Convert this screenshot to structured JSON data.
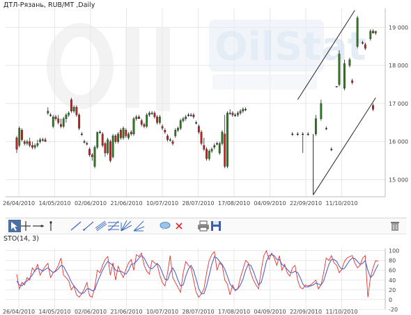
{
  "chart_data": [
    {
      "type": "candlestick",
      "title": "ДТЛ-Рязань,  RUB/MT ,Daily",
      "y_axis_side": "right",
      "ylim": [
        14550,
        19500
      ],
      "yticks": [
        15000,
        16000,
        17000,
        18000,
        19000
      ],
      "ytick_labels": [
        "15 000",
        "16 000",
        "17 000",
        "18 000",
        "19 000"
      ],
      "x_ticks": [
        "26/04/2010",
        "14/05/2010",
        "02/06/2010",
        "21/06/2010",
        "10/07/2010",
        "28/07/2010",
        "17/08/2010",
        "04/09/2010",
        "22/09/2010",
        "11/10/2010"
      ],
      "grid": true,
      "watermark": "OilStat",
      "colors": {
        "up": "#2e7d1f",
        "down": "#cc1f1f",
        "flat": "#222222",
        "trendline": "#222222"
      },
      "candles": [
        {
          "o": 16100,
          "h": 16150,
          "l": 15700,
          "c": 15800
        },
        {
          "o": 15900,
          "h": 16400,
          "l": 15850,
          "c": 16350
        },
        {
          "o": 16300,
          "h": 16350,
          "l": 16000,
          "c": 16050
        },
        {
          "o": 16000,
          "h": 16050,
          "l": 15900,
          "c": 15950
        },
        {
          "o": 15950,
          "h": 16050,
          "l": 15900,
          "c": 16000
        },
        {
          "o": 16000,
          "h": 16100,
          "l": 15850,
          "c": 15900
        },
        {
          "o": 15900,
          "h": 16000,
          "l": 15800,
          "c": 15850
        },
        {
          "o": 15850,
          "h": 15950,
          "l": 15800,
          "c": 15900
        },
        {
          "o": 15900,
          "h": 16050,
          "l": 15850,
          "c": 15950
        },
        {
          "o": 16000,
          "h": 16100,
          "l": 15950,
          "c": 16050
        },
        {
          "o": 16050,
          "h": 16100,
          "l": 16000,
          "c": 16050
        },
        {
          "o": 16050,
          "h": 16100,
          "l": 16000,
          "c": 16000
        },
        {
          "o": 16750,
          "h": 16900,
          "l": 16700,
          "c": 16800
        },
        {
          "o": 16700,
          "h": 16750,
          "l": 16650,
          "c": 16700
        },
        {
          "o": 16400,
          "h": 16700,
          "l": 16350,
          "c": 16650
        },
        {
          "o": 16650,
          "h": 16700,
          "l": 16550,
          "c": 16600
        },
        {
          "o": 16600,
          "h": 16700,
          "l": 16450,
          "c": 16500
        },
        {
          "o": 16450,
          "h": 16600,
          "l": 16350,
          "c": 16400
        },
        {
          "o": 16400,
          "h": 16650,
          "l": 16350,
          "c": 16600
        },
        {
          "o": 16600,
          "h": 16750,
          "l": 16500,
          "c": 16700
        },
        {
          "o": 16700,
          "h": 16800,
          "l": 16650,
          "c": 16750
        },
        {
          "o": 17100,
          "h": 17150,
          "l": 16750,
          "c": 16800
        },
        {
          "o": 16800,
          "h": 16950,
          "l": 16750,
          "c": 16900
        },
        {
          "o": 16900,
          "h": 16950,
          "l": 16650,
          "c": 16700
        },
        {
          "o": 16700,
          "h": 16750,
          "l": 16300,
          "c": 16350
        },
        {
          "o": 16200,
          "h": 16250,
          "l": 16150,
          "c": 16200
        },
        {
          "o": 16000,
          "h": 16050,
          "l": 15950,
          "c": 16000
        },
        {
          "o": 15950,
          "h": 16000,
          "l": 15900,
          "c": 15950
        },
        {
          "o": 15800,
          "h": 15850,
          "l": 15600,
          "c": 15650
        },
        {
          "o": 15650,
          "h": 15700,
          "l": 15500,
          "c": 15600
        },
        {
          "o": 15350,
          "h": 15900,
          "l": 15300,
          "c": 15850
        },
        {
          "o": 15850,
          "h": 16250,
          "l": 15800,
          "c": 16250
        },
        {
          "o": 16250,
          "h": 16300,
          "l": 16200,
          "c": 16250
        },
        {
          "o": 16200,
          "h": 16250,
          "l": 15850,
          "c": 15900
        },
        {
          "o": 15950,
          "h": 16000,
          "l": 15600,
          "c": 15700
        },
        {
          "o": 15700,
          "h": 16100,
          "l": 15650,
          "c": 16050
        },
        {
          "o": 16000,
          "h": 16050,
          "l": 15450,
          "c": 15500
        },
        {
          "o": 15600,
          "h": 16200,
          "l": 15550,
          "c": 16150
        },
        {
          "o": 16150,
          "h": 16200,
          "l": 15950,
          "c": 16000
        },
        {
          "o": 16000,
          "h": 16250,
          "l": 15950,
          "c": 16200
        },
        {
          "o": 16300,
          "h": 16350,
          "l": 16050,
          "c": 16100
        },
        {
          "o": 16100,
          "h": 16400,
          "l": 16050,
          "c": 16350
        },
        {
          "o": 16300,
          "h": 16350,
          "l": 16100,
          "c": 16150
        },
        {
          "o": 16100,
          "h": 16250,
          "l": 16050,
          "c": 16200
        },
        {
          "o": 16250,
          "h": 16300,
          "l": 16150,
          "c": 16200
        },
        {
          "o": 16200,
          "h": 16650,
          "l": 16150,
          "c": 16600
        },
        {
          "o": 16600,
          "h": 16700,
          "l": 16550,
          "c": 16650
        },
        {
          "o": 16650,
          "h": 16700,
          "l": 16600,
          "c": 16600
        },
        {
          "o": 16550,
          "h": 16600,
          "l": 16400,
          "c": 16450
        },
        {
          "o": 16450,
          "h": 16500,
          "l": 16350,
          "c": 16400
        },
        {
          "o": 16400,
          "h": 16750,
          "l": 16350,
          "c": 16700
        },
        {
          "o": 16700,
          "h": 16800,
          "l": 16650,
          "c": 16750
        },
        {
          "o": 16750,
          "h": 16800,
          "l": 16700,
          "c": 16750
        },
        {
          "o": 16750,
          "h": 16800,
          "l": 16600,
          "c": 16650
        },
        {
          "o": 16650,
          "h": 16700,
          "l": 16450,
          "c": 16500
        },
        {
          "o": 16500,
          "h": 16700,
          "l": 16450,
          "c": 16650
        },
        {
          "o": 16400,
          "h": 16450,
          "l": 16300,
          "c": 16350
        },
        {
          "o": 16300,
          "h": 16350,
          "l": 16200,
          "c": 16250
        },
        {
          "o": 16150,
          "h": 16200,
          "l": 16000,
          "c": 16050
        },
        {
          "o": 16050,
          "h": 16100,
          "l": 16000,
          "c": 16050
        },
        {
          "o": 16000,
          "h": 16050,
          "l": 15900,
          "c": 15950
        },
        {
          "o": 16150,
          "h": 16350,
          "l": 16100,
          "c": 16300
        },
        {
          "o": 16300,
          "h": 16400,
          "l": 16250,
          "c": 16350
        },
        {
          "o": 16350,
          "h": 16600,
          "l": 16300,
          "c": 16550
        },
        {
          "o": 16550,
          "h": 16650,
          "l": 16500,
          "c": 16600
        },
        {
          "o": 16600,
          "h": 16700,
          "l": 16550,
          "c": 16650
        },
        {
          "o": 16700,
          "h": 16750,
          "l": 16650,
          "c": 16700
        },
        {
          "o": 16700,
          "h": 16750,
          "l": 16650,
          "c": 16700
        },
        {
          "o": 16700,
          "h": 16750,
          "l": 16600,
          "c": 16650
        },
        {
          "o": 16500,
          "h": 16550,
          "l": 16450,
          "c": 16500
        },
        {
          "o": 16400,
          "h": 16450,
          "l": 16200,
          "c": 16250
        },
        {
          "o": 16250,
          "h": 16300,
          "l": 15900,
          "c": 15950
        },
        {
          "o": 15900,
          "h": 16100,
          "l": 15750,
          "c": 15800
        },
        {
          "o": 15800,
          "h": 15850,
          "l": 15500,
          "c": 15550
        },
        {
          "o": 15550,
          "h": 15800,
          "l": 15500,
          "c": 15750
        },
        {
          "o": 15750,
          "h": 15850,
          "l": 15700,
          "c": 15800
        },
        {
          "o": 15850,
          "h": 15950,
          "l": 15800,
          "c": 15900
        },
        {
          "o": 15950,
          "h": 16000,
          "l": 15900,
          "c": 15950
        },
        {
          "o": 15700,
          "h": 16000,
          "l": 15650,
          "c": 15950
        },
        {
          "o": 15950,
          "h": 16300,
          "l": 15900,
          "c": 16250
        },
        {
          "o": 16200,
          "h": 16700,
          "l": 15300,
          "c": 15350
        },
        {
          "o": 15350,
          "h": 16800,
          "l": 15300,
          "c": 16750
        },
        {
          "o": 16750,
          "h": 16850,
          "l": 16700,
          "c": 16750
        },
        {
          "o": 16750,
          "h": 16800,
          "l": 16650,
          "c": 16700
        },
        {
          "o": 16700,
          "h": 16750,
          "l": 16650,
          "c": 16700
        },
        {
          "o": 16700,
          "h": 16800,
          "l": 16650,
          "c": 16750
        },
        {
          "o": 16750,
          "h": 16850,
          "l": 16700,
          "c": 16800
        },
        {
          "o": 16800,
          "h": 16900,
          "l": 16750,
          "c": 16850
        },
        {
          "o": 16850,
          "h": 16900,
          "l": 16800,
          "c": 16850
        }
      ],
      "trendlines": [
        {
          "from": {
            "bar": 108,
            "price": 17100
          },
          "to": {
            "bar": 130,
            "price": 19450
          }
        },
        {
          "from": {
            "bar": 114,
            "price": 14600
          },
          "to": {
            "bar": 138,
            "price": 17150
          }
        },
        {
          "from": {
            "bar": 114,
            "price": 16200
          },
          "to": {
            "bar": 114,
            "price": 14600
          }
        }
      ],
      "late_candles": [
        {
          "bar": 106,
          "o": 16200,
          "h": 16250,
          "l": 16150,
          "c": 16200
        },
        {
          "bar": 108,
          "o": 16200,
          "h": 16250,
          "l": 16150,
          "c": 16200
        },
        {
          "bar": 110,
          "o": 16200,
          "h": 16250,
          "l": 15700,
          "c": 16200
        },
        {
          "bar": 112,
          "o": 16200,
          "h": 16250,
          "l": 16150,
          "c": 16200
        },
        {
          "bar": 115,
          "o": 16200,
          "h": 16700,
          "l": 16150,
          "c": 16600
        },
        {
          "bar": 117,
          "o": 16600,
          "h": 17100,
          "l": 16550,
          "c": 17000
        },
        {
          "bar": 119,
          "o": 16350,
          "h": 16400,
          "l": 16300,
          "c": 16350
        },
        {
          "bar": 121,
          "o": 15800,
          "h": 15850,
          "l": 15750,
          "c": 15800
        },
        {
          "bar": 123,
          "o": 17450,
          "h": 17450,
          "l": 17450,
          "c": 17450
        },
        {
          "bar": 124,
          "o": 17500,
          "h": 18400,
          "l": 17450,
          "c": 18300
        },
        {
          "bar": 126,
          "o": 17400,
          "h": 18150,
          "l": 17350,
          "c": 18050
        },
        {
          "bar": 128,
          "o": 18000,
          "h": 18200,
          "l": 17950,
          "c": 18150
        },
        {
          "bar": 129,
          "o": 17600,
          "h": 17650,
          "l": 17500,
          "c": 17550
        },
        {
          "bar": 131,
          "o": 18500,
          "h": 19300,
          "l": 18450,
          "c": 19250
        },
        {
          "bar": 133,
          "o": 18600,
          "h": 18650,
          "l": 18550,
          "c": 18600
        },
        {
          "bar": 134,
          "o": 18550,
          "h": 18600,
          "l": 18400,
          "c": 18450
        },
        {
          "bar": 136,
          "o": 18700,
          "h": 18950,
          "l": 18650,
          "c": 18900
        },
        {
          "bar": 137,
          "o": 18900,
          "h": 18950,
          "l": 18850,
          "c": 18850
        },
        {
          "bar": 138,
          "o": 18850,
          "h": 18900,
          "l": 18800,
          "c": 18900
        },
        {
          "bar": 137,
          "o": 16950,
          "h": 17000,
          "l": 16800,
          "c": 16850
        }
      ]
    },
    {
      "type": "line",
      "title": "STO(14, 3)",
      "y_axis_side": "right",
      "ylim": [
        -20,
        105
      ],
      "yticks": [
        -20,
        0,
        20,
        40,
        60,
        80,
        100
      ],
      "ytick_labels": [
        "-20",
        "0",
        "20",
        "40",
        "60",
        "80",
        "100"
      ],
      "x_ticks": [
        "26/04/2010",
        "14/05/2010",
        "02/06/2010",
        "21/06/2010",
        "10/07/2010",
        "28/07/2010",
        "17/08/2010",
        "04/09/2010",
        "22/09/2010",
        "11/10/2010"
      ],
      "grid": true,
      "series": [
        {
          "color": "#e8302a",
          "values": [
            52,
            22,
            35,
            30,
            45,
            40,
            65,
            58,
            72,
            50,
            60,
            68,
            74,
            45,
            55,
            60,
            70,
            85,
            50,
            45,
            38,
            20,
            28,
            10,
            5,
            12,
            22,
            35,
            8,
            5,
            25,
            60,
            55,
            70,
            82,
            88,
            50,
            75,
            40,
            68,
            55,
            45,
            62,
            75,
            82,
            60,
            92,
            88,
            95,
            70,
            58,
            52,
            80,
            75,
            72,
            50,
            35,
            28,
            55,
            90,
            45,
            35,
            25,
            15,
            55,
            78,
            70,
            65,
            40,
            15,
            5,
            12,
            22,
            55,
            80,
            92,
            98,
            60,
            75,
            70,
            40,
            32,
            10,
            30,
            18,
            22,
            45,
            62,
            80,
            75,
            55,
            40,
            30,
            22,
            60,
            90,
            100,
            82,
            95,
            85,
            70,
            90,
            60,
            72,
            55,
            48,
            65,
            70,
            40,
            25,
            22,
            30,
            28,
            30,
            35,
            40,
            22,
            30,
            55,
            85,
            80,
            90,
            75,
            70,
            55,
            62,
            78,
            85,
            88,
            90,
            75,
            65,
            70,
            85,
            90,
            5,
            45,
            65,
            80,
            78
          ]
        },
        {
          "color": "#5560c8",
          "values": [
            38,
            30,
            28,
            35,
            38,
            44,
            50,
            60,
            64,
            62,
            58,
            62,
            65,
            60,
            55,
            58,
            63,
            70,
            68,
            58,
            48,
            36,
            28,
            22,
            15,
            12,
            15,
            22,
            22,
            18,
            20,
            35,
            48,
            60,
            70,
            78,
            74,
            70,
            60,
            58,
            58,
            55,
            52,
            60,
            72,
            73,
            78,
            85,
            90,
            85,
            74,
            65,
            63,
            68,
            74,
            68,
            55,
            42,
            40,
            55,
            65,
            55,
            40,
            28,
            30,
            48,
            62,
            70,
            60,
            42,
            22,
            12,
            12,
            28,
            50,
            72,
            88,
            85,
            78,
            72,
            62,
            48,
            32,
            25,
            20,
            22,
            30,
            42,
            60,
            72,
            70,
            58,
            43,
            30,
            35,
            55,
            78,
            90,
            92,
            90,
            82,
            82,
            72,
            68,
            62,
            56,
            55,
            58,
            55,
            45,
            32,
            26,
            26,
            28,
            30,
            34,
            32,
            30,
            38,
            55,
            72,
            82,
            82,
            78,
            68,
            62,
            64,
            72,
            80,
            85,
            84,
            78,
            72,
            74,
            80,
            60,
            45,
            50,
            62,
            72
          ]
        }
      ]
    }
  ],
  "chart_header": {
    "title": "ДТЛ-Рязань,  RUB/MT ,Daily"
  },
  "indicator_header": {
    "title": "STO(14, 3)"
  },
  "toolbar": {
    "tools": [
      {
        "icon": "cursor-arrow-icon",
        "active": true
      },
      {
        "icon": "crosshair-icon"
      },
      {
        "icon": "horizontal-line-icon"
      },
      {
        "icon": "vertical-line-icon"
      },
      {
        "icon": "trendline-icon"
      },
      {
        "icon": "ray-icon"
      },
      {
        "icon": "parallel-channel-icon"
      },
      {
        "icon": "fibonacci-icon"
      },
      {
        "icon": "gann-fan-icon"
      },
      {
        "icon": "speed-lines-icon"
      },
      {
        "icon": "text-balloon-icon"
      },
      {
        "icon": "delete-marker-icon"
      },
      {
        "icon": "print-icon"
      },
      {
        "icon": "save-icon"
      },
      {
        "icon": "trash-icon"
      }
    ]
  }
}
